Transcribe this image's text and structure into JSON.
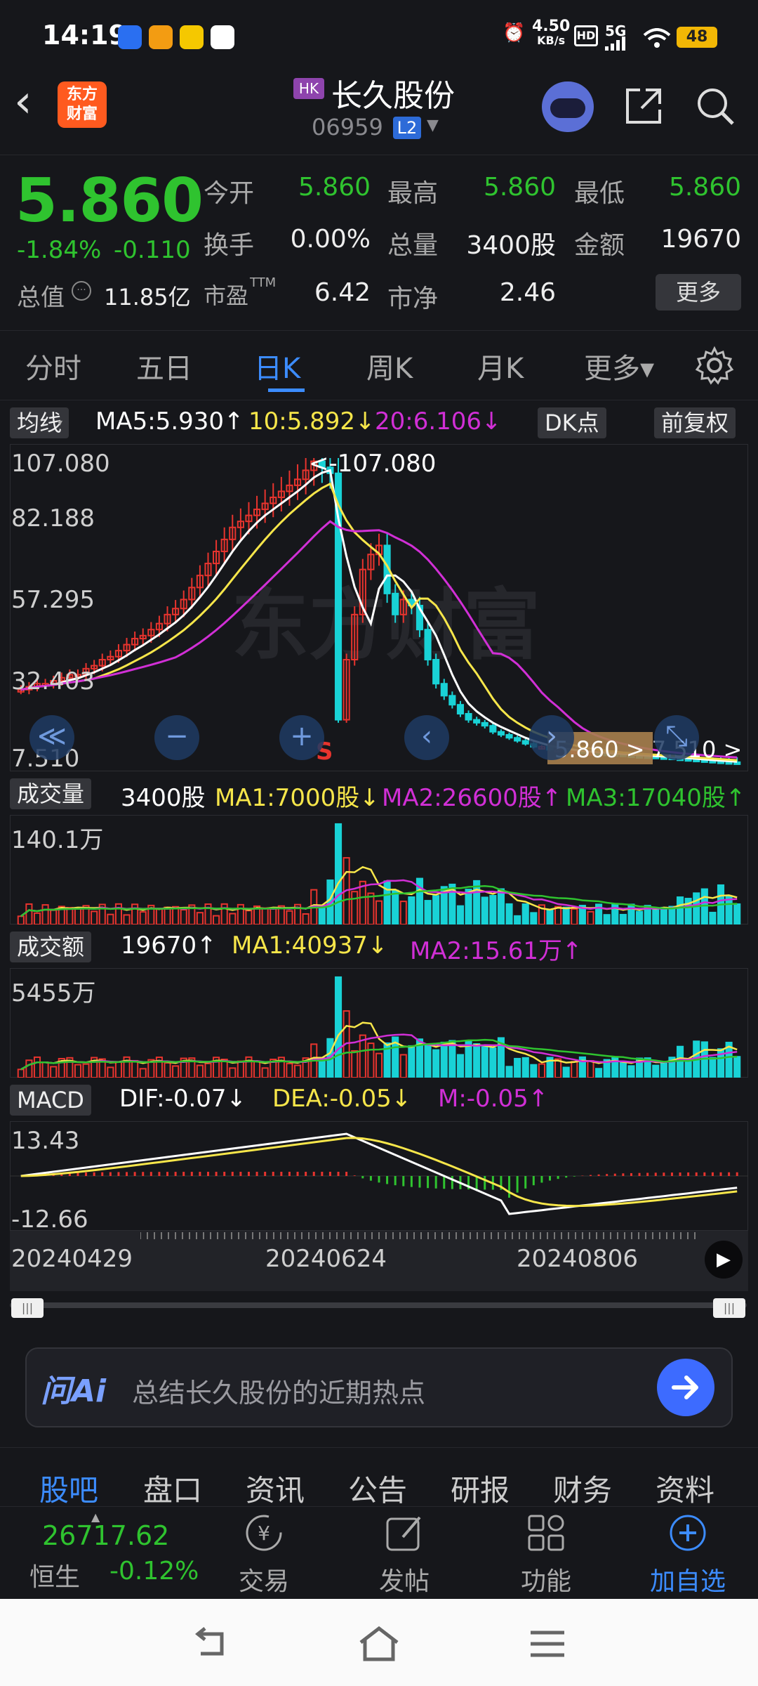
{
  "status_bar": {
    "time": "14:19",
    "net_speed": "4.50",
    "net_unit": "KB/s",
    "hd": "HD",
    "signal": "5G",
    "battery": "48"
  },
  "header": {
    "back": "‹",
    "brand_line1": "东方",
    "brand_line2": "财富",
    "market_badge": "HK",
    "stock_name": "长久股份",
    "stock_code": "06959",
    "level_badge": "L2",
    "level_arrow": "▼"
  },
  "quote": {
    "price": "5.860",
    "change_pct": "-1.84%",
    "change_amt": "-0.110",
    "market_cap_label": "总值",
    "market_cap_value": "11.85亿",
    "open_label": "今开",
    "open": "5.860",
    "high_label": "最高",
    "high": "5.860",
    "low_label": "最低",
    "low": "5.860",
    "turnover_label": "换手",
    "turnover": "0.00%",
    "volume_label": "总量",
    "volume": "3400股",
    "amount_label": "金额",
    "amount": "19670",
    "pe_label": "市盈",
    "pe_sup": "TTM",
    "pe": "6.42",
    "pb_label": "市净",
    "pb": "2.46",
    "more_label": "更多"
  },
  "tabs": [
    "分时",
    "五日",
    "日K",
    "周K",
    "月K",
    "更多▾"
  ],
  "ma_bar": {
    "chip": "均线",
    "ma5": "MA5:5.930↑",
    "ma10": "10:5.892↓",
    "ma20": "20:6.106↓",
    "dk": "DK点",
    "fq": "前复权"
  },
  "kline": {
    "y_ticks": [
      "107.080",
      "82.188",
      "57.295",
      "32.403",
      "7.510"
    ],
    "max_note": "<-107.080",
    "current_tag": "5.860 > 7.510 >",
    "sell_mark": "S",
    "controls": [
      "≪",
      "−",
      "+",
      "‹",
      "›",
      "⤡"
    ]
  },
  "vol_bar": {
    "chip": "成交量",
    "value": "3400股",
    "ma1": "MA1:7000股↓",
    "ma2": "MA2:26600股↑",
    "ma3": "MA3:17040股↑",
    "y_top": "140.1万"
  },
  "amt_bar": {
    "chip": "成交额",
    "value": "19670↑",
    "ma1": "MA1:40937↓",
    "ma2": "MA2:15.61万↑",
    "y_top": "5455万"
  },
  "macd_bar": {
    "chip": "MACD",
    "dif": "DIF:-0.07↓",
    "dea": "DEA:-0.05↓",
    "m": "M:-0.05↑",
    "y_top": "13.43",
    "y_bottom": "-12.66"
  },
  "dates": [
    "20240429",
    "20240624",
    "20240806"
  ],
  "ai": {
    "logo": "问Ai",
    "placeholder": "总结长久股份的近期热点"
  },
  "bottom_tabs": [
    "股吧",
    "盘口",
    "资讯",
    "公告",
    "研报",
    "财务",
    "资料"
  ],
  "dock": {
    "index_value": "26717.62",
    "index_name": "恒生",
    "index_change": "-0.12%",
    "trade": "交易",
    "post": "发帖",
    "func": "功能",
    "add": "加自选"
  },
  "colors": {
    "up": "#e8342e",
    "down": "#19d2d6",
    "green": "#2fc32f",
    "ma5": "#ffffff",
    "ma10": "#f7e64a",
    "ma20": "#d12fd6",
    "accent": "#3c8cff"
  },
  "chart_data": {
    "type": "candlestick",
    "x": [
      "20240429",
      "20240624",
      "20240806"
    ],
    "ylim": [
      7.51,
      107.08
    ],
    "max_price": 107.08,
    "close_series": [
      30,
      31,
      32,
      32,
      33,
      34,
      35,
      35,
      37,
      38,
      40,
      41,
      43,
      45,
      47,
      48,
      50,
      52,
      55,
      57,
      60,
      64,
      68,
      72,
      76,
      80,
      84,
      86,
      88,
      90,
      92,
      94,
      96,
      98,
      100,
      103,
      106,
      104,
      102,
      20,
      40,
      55,
      70,
      75,
      78,
      62,
      55,
      60,
      58,
      50,
      40,
      32,
      28,
      25,
      22,
      20,
      19,
      18,
      16,
      15,
      14,
      13,
      12,
      11,
      11,
      10,
      10,
      9.5,
      9.5,
      9,
      9,
      8.8,
      8.6,
      8.5,
      8.2,
      8,
      7.9,
      7.8,
      7.6,
      7.5,
      7.2,
      7,
      6.8,
      6.6,
      6.4,
      6.2,
      6,
      5.9,
      5.86
    ],
    "macd_range": [
      -12.66,
      13.43
    ]
  }
}
